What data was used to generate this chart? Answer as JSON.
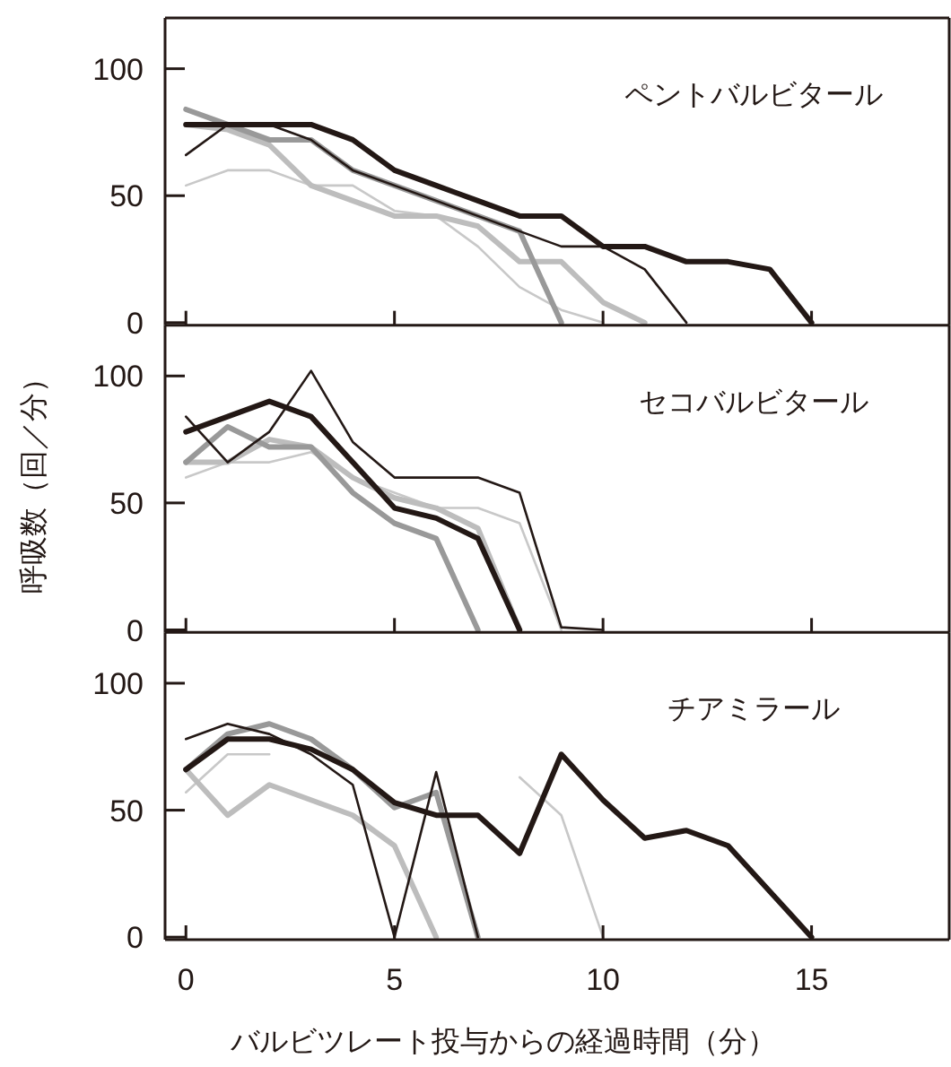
{
  "chart_data": [
    {
      "type": "line",
      "title": "ペントバルビタール",
      "xlim": [
        -0.5,
        18.3
      ],
      "xticks": [
        0,
        5,
        10,
        15
      ],
      "ylim": [
        -1,
        120
      ],
      "yticks": [
        0,
        50,
        100
      ],
      "tick_labels": "y",
      "grid": false,
      "marker": "none",
      "line_style": "solid",
      "x": [
        0,
        1,
        2,
        3,
        4,
        5,
        6,
        7,
        8,
        9,
        10,
        11,
        12,
        13,
        14,
        15
      ],
      "series": [
        {
          "color": "#c8c8c8",
          "values": [
            54,
            60,
            60,
            54,
            54,
            44,
            42,
            30,
            14,
            5,
            0,
            null,
            null,
            null,
            null,
            null
          ]
        },
        {
          "color": "#bdbdbd",
          "values": [
            78,
            76,
            70,
            54,
            48,
            42,
            42,
            38,
            24,
            24,
            8,
            0,
            null,
            null,
            null,
            null
          ]
        },
        {
          "color": "#999999",
          "values": [
            84,
            78,
            72,
            72,
            60,
            54,
            48,
            42,
            36,
            0,
            null,
            null,
            null,
            null,
            null,
            null
          ]
        },
        {
          "color": "#231815",
          "values": [
            66,
            78,
            78,
            72,
            60,
            54,
            48,
            42,
            36,
            30,
            30,
            21,
            0,
            null,
            null,
            null
          ]
        },
        {
          "color": "#231815",
          "values": [
            78,
            78,
            78,
            78,
            72,
            60,
            54,
            48,
            42,
            42,
            30,
            30,
            24,
            24,
            21,
            0
          ]
        }
      ]
    },
    {
      "type": "line",
      "title": "セコバルビタール",
      "ylabel": "呼吸数（回／分）",
      "xlim": [
        -0.5,
        18.3
      ],
      "xticks": [
        0,
        5,
        10,
        15
      ],
      "ylim": [
        -1,
        120
      ],
      "yticks": [
        0,
        50,
        100
      ],
      "tick_labels": "y",
      "grid": false,
      "marker": "none",
      "line_style": "solid",
      "x": [
        0,
        1,
        2,
        3,
        4,
        5,
        6,
        7,
        8,
        9,
        10
      ],
      "series": [
        {
          "color": "#c8c8c8",
          "values": [
            60,
            66,
            66,
            70,
            60,
            54,
            48,
            48,
            42,
            0,
            null
          ]
        },
        {
          "color": "#bdbdbd",
          "values": [
            66,
            66,
            75,
            72,
            60,
            52,
            48,
            40,
            0,
            null,
            null
          ]
        },
        {
          "color": "#999999",
          "values": [
            66,
            80,
            72,
            72,
            54,
            42,
            36,
            0,
            null,
            null,
            null
          ]
        },
        {
          "color": "#231815",
          "values": [
            84,
            66,
            78,
            102,
            74,
            60,
            60,
            60,
            54,
            1,
            0
          ]
        },
        {
          "color": "#231815",
          "values": [
            78,
            84,
            90,
            84,
            66,
            48,
            44,
            36,
            0,
            null,
            null
          ]
        }
      ]
    },
    {
      "type": "line",
      "title": "チアミラール",
      "xlabel": "バルビツレート投与からの経過時間（分）",
      "xlim": [
        -0.5,
        18.3
      ],
      "xticks": [
        0,
        5,
        10,
        15
      ],
      "ylim": [
        -1,
        120
      ],
      "yticks": [
        0,
        50,
        100
      ],
      "grid": false,
      "marker": "none",
      "line_style": "solid",
      "x": [
        0,
        1,
        2,
        3,
        4,
        5,
        6,
        7,
        8,
        9,
        10,
        11,
        12,
        13,
        14,
        15
      ],
      "series": [
        {
          "color": "#c8c8c8",
          "values": [
            57,
            72,
            72,
            null,
            null,
            null,
            null,
            null,
            63,
            48,
            0,
            null,
            null,
            null,
            null,
            null
          ]
        },
        {
          "color": "#bdbdbd",
          "values": [
            66,
            48,
            60,
            54,
            48,
            36,
            0,
            null,
            null,
            null,
            null,
            null,
            null,
            null,
            null,
            null
          ]
        },
        {
          "color": "#999999",
          "values": [
            66,
            80,
            84,
            78,
            66,
            51,
            57,
            0,
            null,
            null,
            null,
            null,
            null,
            null,
            null,
            null
          ]
        },
        {
          "color": "#231815",
          "values": [
            78,
            84,
            80,
            72,
            60,
            0,
            65,
            0,
            null,
            null,
            null,
            null,
            null,
            null,
            null,
            null
          ]
        },
        {
          "color": "#231815",
          "values": [
            66,
            78,
            78,
            74,
            66,
            53,
            48,
            48,
            33,
            72,
            54,
            39,
            42,
            36,
            18,
            0
          ]
        }
      ]
    }
  ]
}
